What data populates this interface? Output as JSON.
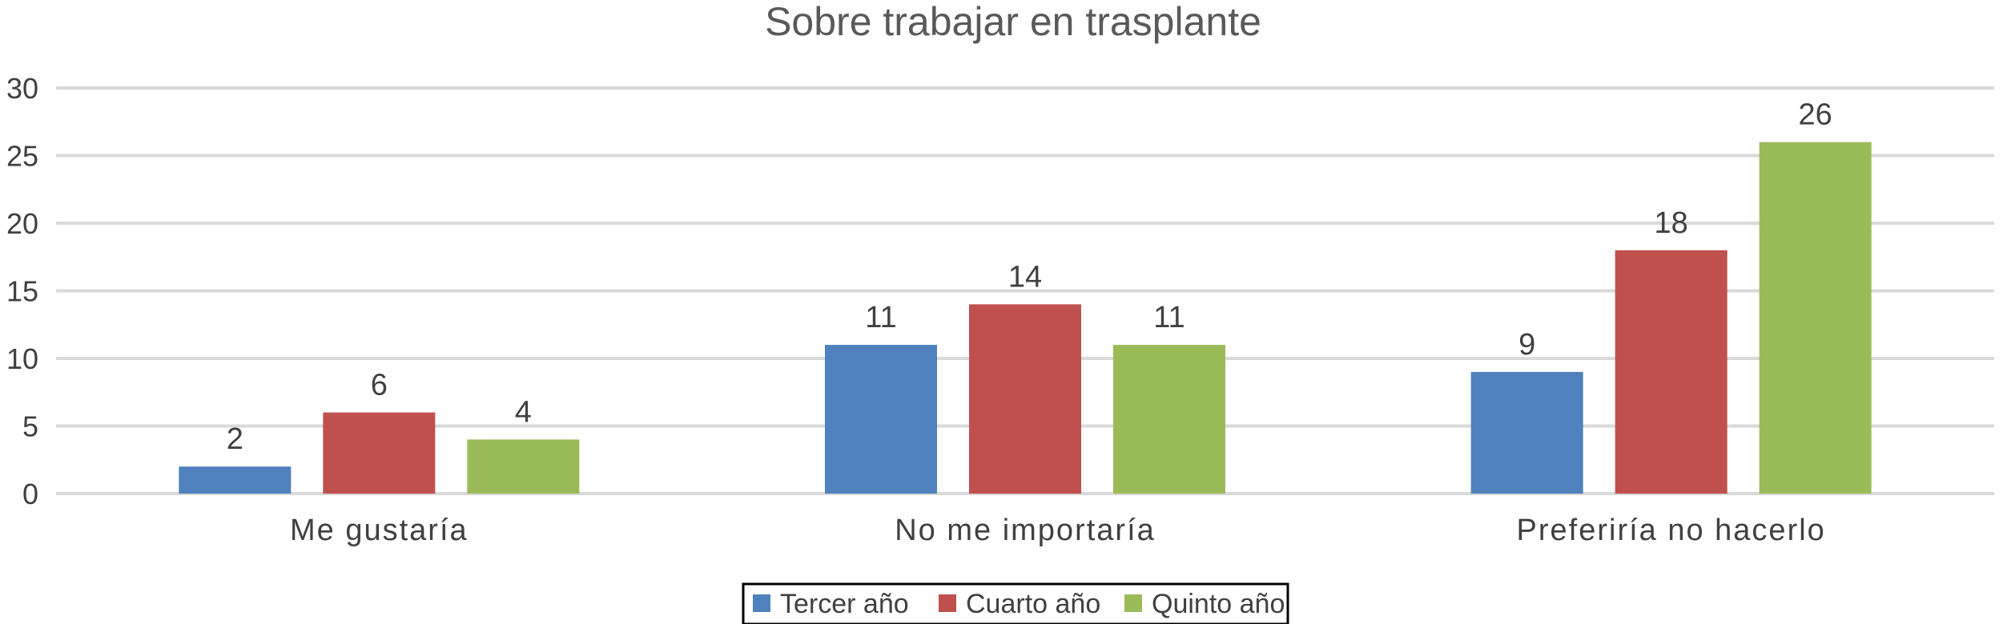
{
  "chart_data": {
    "type": "bar",
    "title": "Sobre trabajar en trasplante",
    "categories": [
      "Me gustaría",
      "No me importaría",
      "Preferiría no hacerlo"
    ],
    "series": [
      {
        "name": "Tercer año",
        "color": "#4F81BD",
        "values": [
          2,
          11,
          9
        ]
      },
      {
        "name": "Cuarto año",
        "color": "#C0504D",
        "values": [
          6,
          14,
          18
        ]
      },
      {
        "name": "Quinto año",
        "color": "#9BBB59",
        "values": [
          4,
          11,
          26
        ]
      }
    ],
    "ylim": [
      0,
      30
    ],
    "yticks": [
      "0",
      "5",
      "10",
      "15",
      "20",
      "25",
      "30"
    ],
    "grid": true,
    "legend_position": "bottom",
    "xlabel": "",
    "ylabel": ""
  }
}
